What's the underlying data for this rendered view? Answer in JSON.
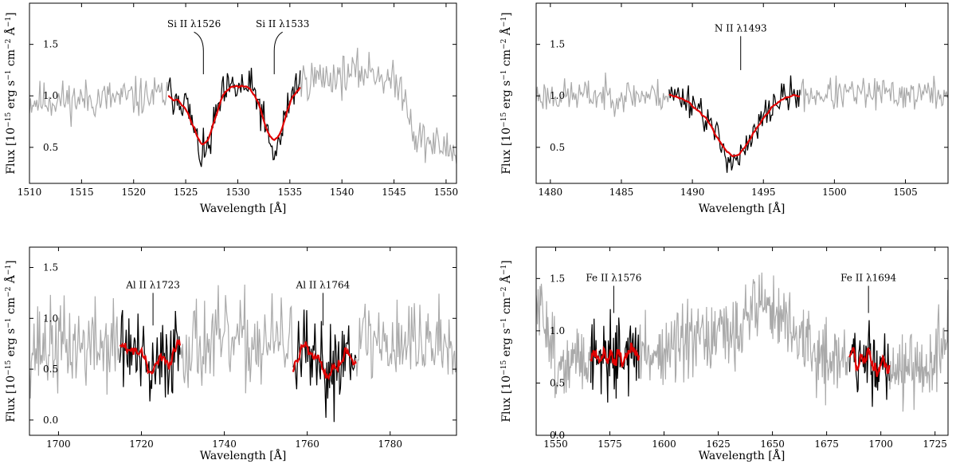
{
  "chart_data": [
    {
      "type": "line",
      "id": "si",
      "xlabel": "Wavelength [Å]",
      "ylabel_main": "Flux [10",
      "ylabel_exp1": "−15",
      "ylabel_unit": " erg s",
      "ylabel_exp2": "−1",
      "ylabel_unit2": " cm",
      "ylabel_exp3": "−2",
      "ylabel_unit3": " Å",
      "ylabel_exp4": "−1",
      "ylabel_close": "]",
      "xlim": [
        1510,
        1551
      ],
      "ylim": [
        0.15,
        1.9
      ],
      "xticks": [
        1510,
        1515,
        1520,
        1525,
        1530,
        1535,
        1540,
        1545,
        1550
      ],
      "yticks": [
        0.5,
        1.0,
        1.5
      ],
      "ytick_labels": [
        "0.5",
        "1.0",
        "1.5"
      ],
      "spectrum": {
        "seed": 11,
        "continuum": [
          [
            1510,
            0.95
          ],
          [
            1520,
            0.98
          ],
          [
            1528,
            1.05
          ],
          [
            1540,
            1.2
          ],
          [
            1543,
            1.25
          ],
          [
            1546,
            1.05
          ],
          [
            1547,
            0.6
          ],
          [
            1551,
            0.45
          ]
        ],
        "noise": 0.12,
        "step": 0.1
      },
      "absorptions": [
        {
          "center": 1526.7,
          "depth": 0.6,
          "width": 0.9
        },
        {
          "center": 1533.5,
          "depth": 0.6,
          "width": 0.9
        }
      ],
      "window": [
        1523.2,
        1536.0
      ],
      "model": {
        "base": 1.0,
        "smooth": true
      },
      "annotations": [
        {
          "label": "Si II λ1526",
          "x": 1526.7,
          "line_y": [
            1.21,
            1.62
          ],
          "curve_to": 1525.8
        },
        {
          "label": "Si II λ1533",
          "x": 1533.5,
          "line_y": [
            1.21,
            1.62
          ],
          "curve_to": 1534.3
        }
      ]
    },
    {
      "type": "line",
      "id": "n",
      "xlabel": "Wavelength [Å]",
      "xlim": [
        1479,
        1508
      ],
      "ylim": [
        0.15,
        1.9
      ],
      "xticks": [
        1480,
        1485,
        1490,
        1495,
        1500,
        1505
      ],
      "yticks": [
        0.5,
        1.0,
        1.5
      ],
      "ytick_labels": [
        "0.5",
        "1.0",
        "1.5"
      ],
      "spectrum": {
        "seed": 23,
        "continuum": [
          [
            1479,
            1.0
          ],
          [
            1508,
            1.02
          ]
        ],
        "noise": 0.1,
        "step": 0.08
      },
      "absorptions": [
        {
          "center": 1493.0,
          "depth": 0.62,
          "width": 1.4
        }
      ],
      "window": [
        1488.3,
        1497.6
      ],
      "model": {
        "base": 1.0,
        "smooth": true
      },
      "annotations": [
        {
          "label": "N II λ1493",
          "x": 1493.4,
          "line_y": [
            1.25,
            1.58
          ],
          "curve_to": null
        }
      ]
    },
    {
      "type": "line",
      "id": "al",
      "xlabel": "Wavelength [Å]",
      "xlim": [
        1693,
        1796
      ],
      "ylim": [
        -0.15,
        1.7
      ],
      "xticks": [
        1700,
        1720,
        1740,
        1760,
        1780
      ],
      "yticks": [
        0.0,
        0.5,
        1.0,
        1.5
      ],
      "ytick_labels": [
        "0.0",
        "0.5",
        "1.0",
        "1.5"
      ],
      "spectrum": {
        "seed": 37,
        "continuum": [
          [
            1693,
            0.72
          ],
          [
            1740,
            0.75
          ],
          [
            1796,
            0.78
          ]
        ],
        "noise": 0.28,
        "step": 0.22
      },
      "absorptions": [
        {
          "center": 1722.5,
          "depth": 0.42,
          "width": 2.6
        },
        {
          "center": 1763.5,
          "depth": 0.42,
          "width": 3.2
        }
      ],
      "window": [
        1714.6,
        1729.4
      ],
      "window2": [
        1756.4,
        1771.8
      ],
      "model": {
        "base": 0.75,
        "smooth": true
      },
      "annotations": [
        {
          "label": "Al II λ1723",
          "x": 1722.8,
          "line_y": [
            0.93,
            1.25
          ],
          "curve_to": null
        },
        {
          "label": "Al II λ1764",
          "x": 1763.8,
          "line_y": [
            0.93,
            1.25
          ],
          "curve_to": null
        }
      ]
    },
    {
      "type": "line",
      "id": "fe",
      "xlabel": "Wavelength [Å]",
      "xlim": [
        1541,
        1731
      ],
      "ylim": [
        0.0,
        1.8
      ],
      "xticks": [
        1550,
        1575,
        1600,
        1625,
        1650,
        1675,
        1700,
        1725
      ],
      "yticks": [
        0.0,
        0.5,
        1.0,
        1.5
      ],
      "ytick_labels": [
        "0.0",
        "0.5",
        "1.0",
        "1.5"
      ],
      "spectrum": {
        "seed": 51,
        "continuum": [
          [
            1541,
            1.2
          ],
          [
            1546,
            1.1
          ],
          [
            1552,
            0.55
          ],
          [
            1560,
            0.75
          ],
          [
            1600,
            0.8
          ],
          [
            1630,
            0.95
          ],
          [
            1645,
            1.3
          ],
          [
            1655,
            1.1
          ],
          [
            1670,
            0.75
          ],
          [
            1700,
            0.7
          ],
          [
            1720,
            0.55
          ],
          [
            1731,
            1.0
          ]
        ],
        "noise": 0.22,
        "step": 0.3
      },
      "absorptions": [],
      "window": [
        1566.0,
        1588.5
      ],
      "window2": [
        1685.5,
        1704.0
      ],
      "model": {
        "base": 0.75,
        "smooth": true
      },
      "annotations": [
        {
          "label": "Fe II λ1576",
          "x": 1576.8,
          "line_y": [
            1.17,
            1.43
          ],
          "curve_to": null
        },
        {
          "label": "Fe II λ1694",
          "x": 1694.3,
          "line_y": [
            1.17,
            1.43
          ],
          "curve_to": null
        }
      ]
    }
  ],
  "colors": {
    "full": "#aaaaaa",
    "window": "#000000",
    "model": "#e00000"
  }
}
